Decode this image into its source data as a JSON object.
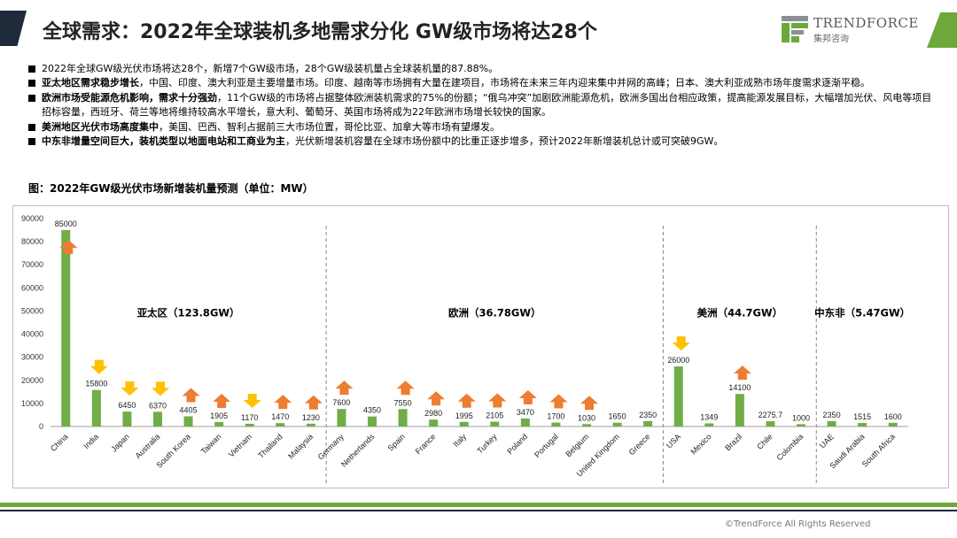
{
  "header": {
    "title": "全球需求：2022年全球装机多地需求分化 GW级市场将达28个",
    "logo_name": "TRENDFORCE",
    "logo_sub": "集邦咨询"
  },
  "bullets": [
    {
      "bold": "",
      "text": "2022年全球GW级光伏市场将达28个，新增7个GW级市场，28个GW级装机量占全球装机量的87.88%。"
    },
    {
      "bold": "亚太地区需求稳步增长",
      "text": "，中国、印度、澳大利亚是主要增量市场。印度、越南等市场拥有大量在建项目，市场将在未来三年内迎来集中并网的高峰；日本、澳大利亚成熟市场年度需求逐渐平稳。"
    },
    {
      "bold": "欧洲市场受能源危机影响，需求十分强劲",
      "text": "，11个GW级的市场将占据整体欧洲装机需求的75%的份额；“俄乌冲突”加剧欧洲能源危机，欧洲多国出台相应政策，提高能源发展目标，大幅增加光伏、风电等项目招标容量，西班牙、荷兰等地将维持较高水平增长，意大利、葡萄牙、英国市场将成为22年欧洲市场增长较快的国家。"
    },
    {
      "bold": "美洲地区光伏市场高度集中",
      "text": "，美国、巴西、智利占据前三大市场位置，哥伦比亚、加拿大等市场有望爆发。"
    },
    {
      "bold": "中东非增量空间巨大，装机类型以地面电站和工商业为主",
      "text": "，光伏新增装机容量在全球市场份额中的比重正逐步增多，预计2022年新增装机总计或可突破9GW。"
    }
  ],
  "caption": "图：2022年GW级光伏市场新增装机量预测（单位：MW）",
  "copyright": "©TrendForce All Rights Reserved",
  "chart_data": {
    "type": "bar",
    "title": "2022年GW级光伏市场新增装机量预测（单位：MW）",
    "ylim": [
      0,
      90000
    ],
    "yticks": [
      0,
      10000,
      20000,
      30000,
      40000,
      50000,
      60000,
      70000,
      80000,
      90000
    ],
    "grid": false,
    "bar_color": "#70ad47",
    "arrow_colors": {
      "up": "#ed7d31",
      "down": "#ffc000"
    },
    "categories": [
      "China",
      "India",
      "Japan",
      "Australia",
      "South Korea",
      "Taiwan",
      "Vietnam",
      "Thailand",
      "Malaysia",
      "Germany",
      "Netherlands",
      "Spain",
      "France",
      "Italy",
      "Turkey",
      "Poland",
      "Portugal",
      "Belgium",
      "United Kingdom",
      "Greece",
      "USA",
      "Mexico",
      "Brazil",
      "Chile",
      "Colombia",
      "UAE",
      "Saudi Arabia",
      "South Africa"
    ],
    "values": [
      85000,
      15800,
      6450,
      6370,
      4405,
      1905,
      1170,
      1470,
      1230,
      7600,
      4350,
      7550,
      2980,
      1995,
      2105,
      3470,
      1700,
      1030,
      1650,
      2350,
      26000,
      1349,
      14100,
      2275.7,
      1000,
      2350,
      1515,
      1600
    ],
    "value_labels": [
      "85000",
      "15800",
      "6450",
      "6370",
      "4405",
      "1905",
      "1170",
      "1470",
      "1230",
      "7600",
      "4350",
      "7550",
      "2980",
      "1995",
      "2105",
      "3470",
      "1700",
      "1030",
      "1650",
      "2350",
      "26000",
      "1349",
      "14100",
      "2275.7",
      "1000",
      "2350",
      "1515",
      "1600"
    ],
    "trend": [
      "up",
      "down",
      "down",
      "down",
      "up",
      "up",
      "down",
      "up",
      "up",
      "up",
      "",
      "up",
      "up",
      "up",
      "up",
      "up",
      "up",
      "up",
      "",
      "",
      "down",
      "",
      "up",
      "",
      "",
      "",
      "",
      ""
    ],
    "regions": [
      {
        "label": "亚太区（123.8GW）",
        "start": 0,
        "end": 8
      },
      {
        "label": "欧洲（36.78GW）",
        "start": 9,
        "end": 19
      },
      {
        "label": "美洲（44.7GW）",
        "start": 20,
        "end": 24
      },
      {
        "label": "中东非（5.47GW）",
        "start": 25,
        "end": 27
      }
    ]
  }
}
